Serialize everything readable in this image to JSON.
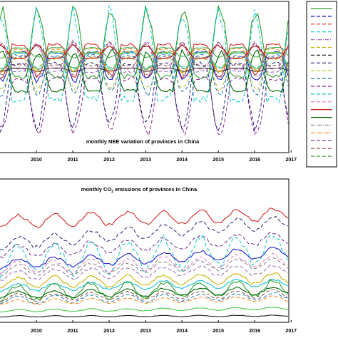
{
  "chart_data": [
    {
      "type": "line",
      "title": "monthly NEE variation of provinces in China",
      "x_tick_labels": [
        "2010",
        "2011",
        "2012",
        "2013",
        "2014",
        "2015",
        "2016",
        "2017"
      ],
      "x_range": [
        "2009-07",
        "2017-06"
      ],
      "grid": false,
      "legend_placement": "right (separate box, entries unreadable)",
      "series_style": "many provinces (~30), mixed solid and dashed lines, strong seasonal cycle; amplitudes estimated",
      "series": [
        {
          "color": "#2ca02c",
          "dash": "solid",
          "mean": 0.2,
          "amp": 0.42,
          "phase": 0.0
        },
        {
          "color": "#d62728",
          "dash": "solid",
          "mean": 0.26,
          "amp": 0.2,
          "phase": 0.1
        },
        {
          "color": "#1f1fd0",
          "dash": "solid",
          "mean": 0.2,
          "amp": 0.18,
          "phase": 0.0
        },
        {
          "color": "#00c8c8",
          "dash": "dash",
          "mean": 0.05,
          "amp": 0.55,
          "phase": 0.1
        },
        {
          "color": "#8b2090",
          "dash": "dash",
          "mean": -0.08,
          "amp": 0.34,
          "phase": 0.0
        },
        {
          "color": "#1a1a80",
          "dash": "dash",
          "mean": 0.02,
          "amp": 0.4,
          "phase": 0.2
        },
        {
          "color": "#006400",
          "dash": "solid",
          "mean": 0.02,
          "amp": 0.25,
          "phase": -0.1
        },
        {
          "color": "#202020",
          "dash": "solid",
          "mean": 0.12,
          "amp": 0.02,
          "phase": 0.0
        },
        {
          "color": "#c8b400",
          "dash": "solid",
          "mean": 0.22,
          "amp": 0.12,
          "phase": 0.0
        },
        {
          "color": "#e377c2",
          "dash": "dash",
          "mean": 0.18,
          "amp": 0.16,
          "phase": 0.3
        },
        {
          "color": "#ff7f0e",
          "dash": "dash",
          "mean": 0.24,
          "amp": 0.14,
          "phase": 0.1
        },
        {
          "color": "#17becf",
          "dash": "solid",
          "mean": 0.22,
          "amp": 0.1,
          "phase": 0.0
        },
        {
          "color": "#9467bd",
          "dash": "dash",
          "mean": 0.16,
          "amp": 0.18,
          "phase": 0.2
        },
        {
          "color": "#7f7f7f",
          "dash": "dash",
          "mean": 0.18,
          "amp": 0.12,
          "phase": -0.2
        },
        {
          "color": "#bcbd22",
          "dash": "dash",
          "mean": 0.14,
          "amp": 0.2,
          "phase": 0.0
        },
        {
          "color": "#8c564b",
          "dash": "dash",
          "mean": 0.2,
          "amp": 0.14,
          "phase": 0.1
        },
        {
          "color": "#1f77b4",
          "dash": "dash",
          "mean": 0.15,
          "amp": 0.24,
          "phase": 0.0
        },
        {
          "color": "#44aa44",
          "dash": "solid",
          "mean": 0.28,
          "amp": 0.06,
          "phase": 0.0
        },
        {
          "color": "#bb0000",
          "dash": "solid",
          "mean": 0.24,
          "amp": 0.08,
          "phase": 0.2
        },
        {
          "color": "#5fd35f",
          "dash": "dash",
          "mean": 0.23,
          "amp": 0.1,
          "phase": 0.1
        }
      ]
    },
    {
      "type": "line",
      "title_main": "monthly CO",
      "title_sub": "2",
      "title_rest": " emissions of provinces in China",
      "x_tick_labels": [
        "2010",
        "2011",
        "2012",
        "2013",
        "2014",
        "2015",
        "2016",
        "2017"
      ],
      "x_range": [
        "2009-07",
        "2017-06"
      ],
      "grid": false,
      "series_style": "many provinces, generally increasing trend with winter peaks; levels estimated",
      "series": [
        {
          "color": "#d62728",
          "dash": "solid",
          "start": 0.8,
          "trend": 0.06,
          "amp": 0.05
        },
        {
          "color": "#1a1a80",
          "dash": "dash",
          "start": 0.62,
          "trend": 0.18,
          "amp": 0.05
        },
        {
          "color": "#6a2a90",
          "dash": "dash",
          "start": 0.55,
          "trend": 0.12,
          "amp": 0.05
        },
        {
          "color": "#00c8c8",
          "dash": "dash",
          "start": 0.48,
          "trend": 0.1,
          "amp": 0.12
        },
        {
          "color": "#e377c2",
          "dash": "dash",
          "start": 0.42,
          "trend": 0.06,
          "amp": 0.05
        },
        {
          "color": "#1f1fd0",
          "dash": "solid",
          "start": 0.45,
          "trend": 0.1,
          "amp": 0.04
        },
        {
          "color": "#7f7f7f",
          "dash": "dash",
          "start": 0.4,
          "trend": 0.06,
          "amp": 0.04
        },
        {
          "color": "#9467bd",
          "dash": "dash",
          "start": 0.36,
          "trend": 0.05,
          "amp": 0.04
        },
        {
          "color": "#c8b400",
          "dash": "solid",
          "start": 0.3,
          "trend": 0.04,
          "amp": 0.04
        },
        {
          "color": "#17becf",
          "dash": "solid",
          "start": 0.26,
          "trend": 0.04,
          "amp": 0.03
        },
        {
          "color": "#2ca02c",
          "dash": "solid",
          "start": 0.22,
          "trend": 0.04,
          "amp": 0.06
        },
        {
          "color": "#006400",
          "dash": "solid",
          "start": 0.2,
          "trend": 0.04,
          "amp": 0.03
        },
        {
          "color": "#8c564b",
          "dash": "dash",
          "start": 0.18,
          "trend": 0.03,
          "amp": 0.03
        },
        {
          "color": "#1f77b4",
          "dash": "dash",
          "start": 0.16,
          "trend": 0.03,
          "amp": 0.03
        },
        {
          "color": "#ff7f0e",
          "dash": "dash",
          "start": 0.14,
          "trend": 0.03,
          "amp": 0.02
        },
        {
          "color": "#44cc44",
          "dash": "solid",
          "start": 0.07,
          "trend": 0.02,
          "amp": 0.01
        },
        {
          "color": "#202020",
          "dash": "solid",
          "start": 0.025,
          "trend": 0.005,
          "amp": 0.005
        }
      ]
    }
  ],
  "legend": {
    "entries": [
      {
        "color": "#2ca02c",
        "dash": "solid"
      },
      {
        "color": "#0000cc",
        "dash": "dash"
      },
      {
        "color": "#d62728",
        "dash": "dash"
      },
      {
        "color": "#00c8c8",
        "dash": "dash"
      },
      {
        "color": "#9467bd",
        "dash": "dashdot"
      },
      {
        "color": "#c8b400",
        "dash": "dash"
      },
      {
        "color": "#202020",
        "dash": "dash"
      },
      {
        "color": "#1a1a80",
        "dash": "dash"
      },
      {
        "color": "#bcbd22",
        "dash": "dash"
      },
      {
        "color": "#1f77b4",
        "dash": "dash"
      },
      {
        "color": "#8b2090",
        "dash": "dash"
      },
      {
        "color": "#17becf",
        "dash": "dash"
      },
      {
        "color": "#e377c2",
        "dash": "dash"
      },
      {
        "color": "#bb0000",
        "dash": "solid"
      },
      {
        "color": "#006400",
        "dash": "solid"
      },
      {
        "color": "#7f7f7f",
        "dash": "dashdot"
      },
      {
        "color": "#ff7f0e",
        "dash": "dashdot"
      },
      {
        "color": "#6a2a90",
        "dash": "dash"
      },
      {
        "color": "#8c564b",
        "dash": "dash"
      },
      {
        "color": "#44aa44",
        "dash": "dash"
      }
    ]
  }
}
